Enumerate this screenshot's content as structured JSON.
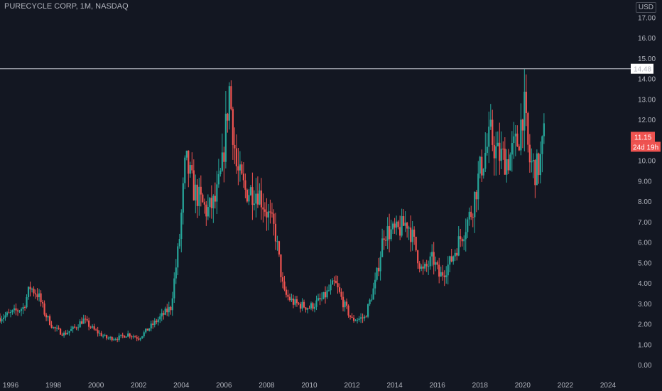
{
  "header": {
    "title": "PURECYCLE CORP, 1M, NASDAQ",
    "currency": "USD"
  },
  "colors": {
    "background": "#131722",
    "up": "#26a69a",
    "down": "#ef5350",
    "axis_text": "#b2b5be"
  },
  "chart_data": {
    "type": "candlestick",
    "interval": "1M",
    "x_range": [
      1995.5,
      2024.8
    ],
    "y_range": [
      -0.4,
      17.7
    ],
    "x_ticks": [
      "1996",
      "1998",
      "2000",
      "2002",
      "2004",
      "2006",
      "2008",
      "2010",
      "2012",
      "2014",
      "2016",
      "2018",
      "2020",
      "2022",
      "2024"
    ],
    "y_ticks": [
      "0.00",
      "1.00",
      "2.00",
      "3.00",
      "4.00",
      "5.00",
      "6.00",
      "7.00",
      "8.00",
      "9.00",
      "10.00",
      "11.00",
      "12.00",
      "13.00",
      "14.00",
      "15.00",
      "16.00",
      "17.00"
    ],
    "horizontal_line": {
      "value": 14.48,
      "label": "14.48"
    },
    "last_price": {
      "value": 11.15,
      "label": "11.15",
      "countdown": "24d 19h"
    },
    "anchors": [
      [
        1995.5,
        2.3
      ],
      [
        1996.0,
        2.5
      ],
      [
        1996.6,
        2.8
      ],
      [
        1996.9,
        3.8
      ],
      [
        1997.3,
        3.4
      ],
      [
        1997.6,
        2.5
      ],
      [
        1998.0,
        1.8
      ],
      [
        1998.5,
        1.5
      ],
      [
        1999.0,
        1.8
      ],
      [
        1999.4,
        2.2
      ],
      [
        1999.9,
        1.7
      ],
      [
        2000.5,
        1.3
      ],
      [
        2001.0,
        1.3
      ],
      [
        2001.5,
        1.5
      ],
      [
        2002.0,
        1.3
      ],
      [
        2002.5,
        1.8
      ],
      [
        2003.0,
        2.3
      ],
      [
        2003.5,
        2.8
      ],
      [
        2003.9,
        6.0
      ],
      [
        2004.2,
        10.0
      ],
      [
        2004.6,
        8.5
      ],
      [
        2005.2,
        7.5
      ],
      [
        2005.6,
        8.0
      ],
      [
        2005.9,
        9.5
      ],
      [
        2006.25,
        13.5
      ],
      [
        2006.6,
        9.5
      ],
      [
        2007.0,
        8.5
      ],
      [
        2007.6,
        8.5
      ],
      [
        2008.0,
        7.5
      ],
      [
        2008.4,
        6.5
      ],
      [
        2008.8,
        3.5
      ],
      [
        2009.3,
        3.0
      ],
      [
        2010.0,
        2.8
      ],
      [
        2010.6,
        3.2
      ],
      [
        2011.2,
        4.0
      ],
      [
        2011.6,
        3.0
      ],
      [
        2012.0,
        2.2
      ],
      [
        2012.6,
        2.3
      ],
      [
        2013.1,
        4.0
      ],
      [
        2013.5,
        6.5
      ],
      [
        2014.1,
        6.5
      ],
      [
        2014.6,
        7.0
      ],
      [
        2014.9,
        6.0
      ],
      [
        2015.3,
        4.5
      ],
      [
        2015.8,
        5.2
      ],
      [
        2016.1,
        4.3
      ],
      [
        2016.6,
        5.0
      ],
      [
        2017.2,
        6.5
      ],
      [
        2017.6,
        7.5
      ],
      [
        2018.0,
        9.5
      ],
      [
        2018.5,
        11.2
      ],
      [
        2018.8,
        10.3
      ],
      [
        2019.3,
        10.0
      ],
      [
        2019.8,
        11.0
      ],
      [
        2020.05,
        12.8
      ],
      [
        2020.3,
        10.0
      ],
      [
        2020.6,
        9.5
      ],
      [
        2020.8,
        9.8
      ],
      [
        2021.0,
        11.15
      ]
    ]
  }
}
